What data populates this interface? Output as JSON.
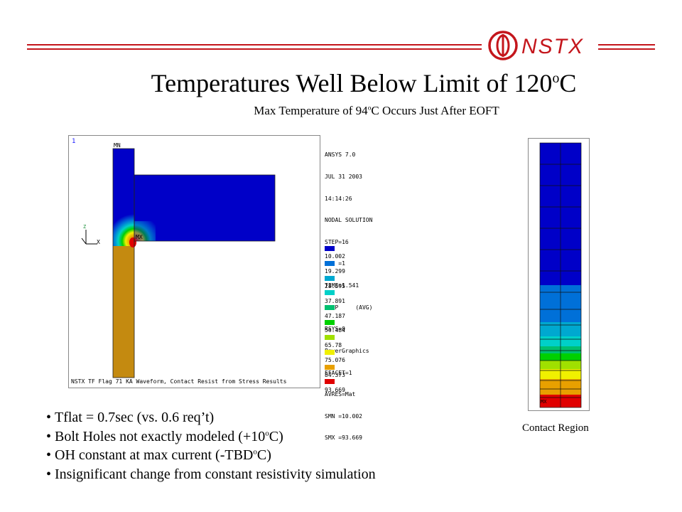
{
  "header": {
    "logo_text": "NSTX",
    "brand_color": "#c4161c"
  },
  "title": {
    "main": "Temperatures Well Below Limit of 120",
    "sup": "o",
    "unit": "C"
  },
  "subtitle": {
    "pre": "Max Temperature of 94",
    "sup": "o",
    "post": "C Occurs Just After EOFT"
  },
  "ansys_panel": {
    "window_number": "1",
    "mn_label": "MN",
    "mx_label": "MX",
    "axis_z": "Z",
    "axis_x": "X",
    "info_lines": [
      "ANSYS 7.0",
      "JUL 31 2003",
      "14:14:26",
      "NODAL SOLUTION",
      "STEP=16",
      "SUB =1",
      "TIME=1.541",
      "TEMP     (AVG)",
      "RSYS=0",
      "PowerGraphics",
      "EFACET=1",
      "AVRES=Mat",
      "SMN =10.002",
      "SMX =93.669"
    ],
    "legend": [
      {
        "value": "10.002",
        "color": "#0000c8"
      },
      {
        "value": "19.299",
        "color": "#0070d8"
      },
      {
        "value": "28.595",
        "color": "#00a8d0"
      },
      {
        "value": "37.891",
        "color": "#00d0c8"
      },
      {
        "value": "47.187",
        "color": "#00c070"
      },
      {
        "value": "56.484",
        "color": "#00d000"
      },
      {
        "value": "65.78",
        "color": "#a0e000"
      },
      {
        "value": "75.076",
        "color": "#f0f000"
      },
      {
        "value": "84.373",
        "color": "#e8a000"
      },
      {
        "value": "93.669",
        "color": "#e00000"
      }
    ],
    "footer": "NSTX TF Flag 71 KA Waveform, Contact Resist from Stress Results"
  },
  "contact_panel": {
    "mx_label": "MX",
    "caption": "Contact Region"
  },
  "bullets": [
    "Tflat = 0.7sec (vs. 0.6 req’t)",
    "Bolt Holes not exactly modeled (+10°C)",
    "OH constant at max current (-TBD°C)",
    "Insignificant change from constant resistivity simulation"
  ],
  "bullets_rich": [
    {
      "pre": "Tflat = 0.7sec (vs. 0.6 req’t)",
      "sup": "",
      "post": ""
    },
    {
      "pre": "Bolt Holes not exactly modeled (+10",
      "sup": "o",
      "post": "C)"
    },
    {
      "pre": "OH constant at max current (-TBD",
      "sup": "o",
      "post": "C)"
    },
    {
      "pre": "Insignificant change from constant resistivity simulation",
      "sup": "",
      "post": ""
    }
  ]
}
